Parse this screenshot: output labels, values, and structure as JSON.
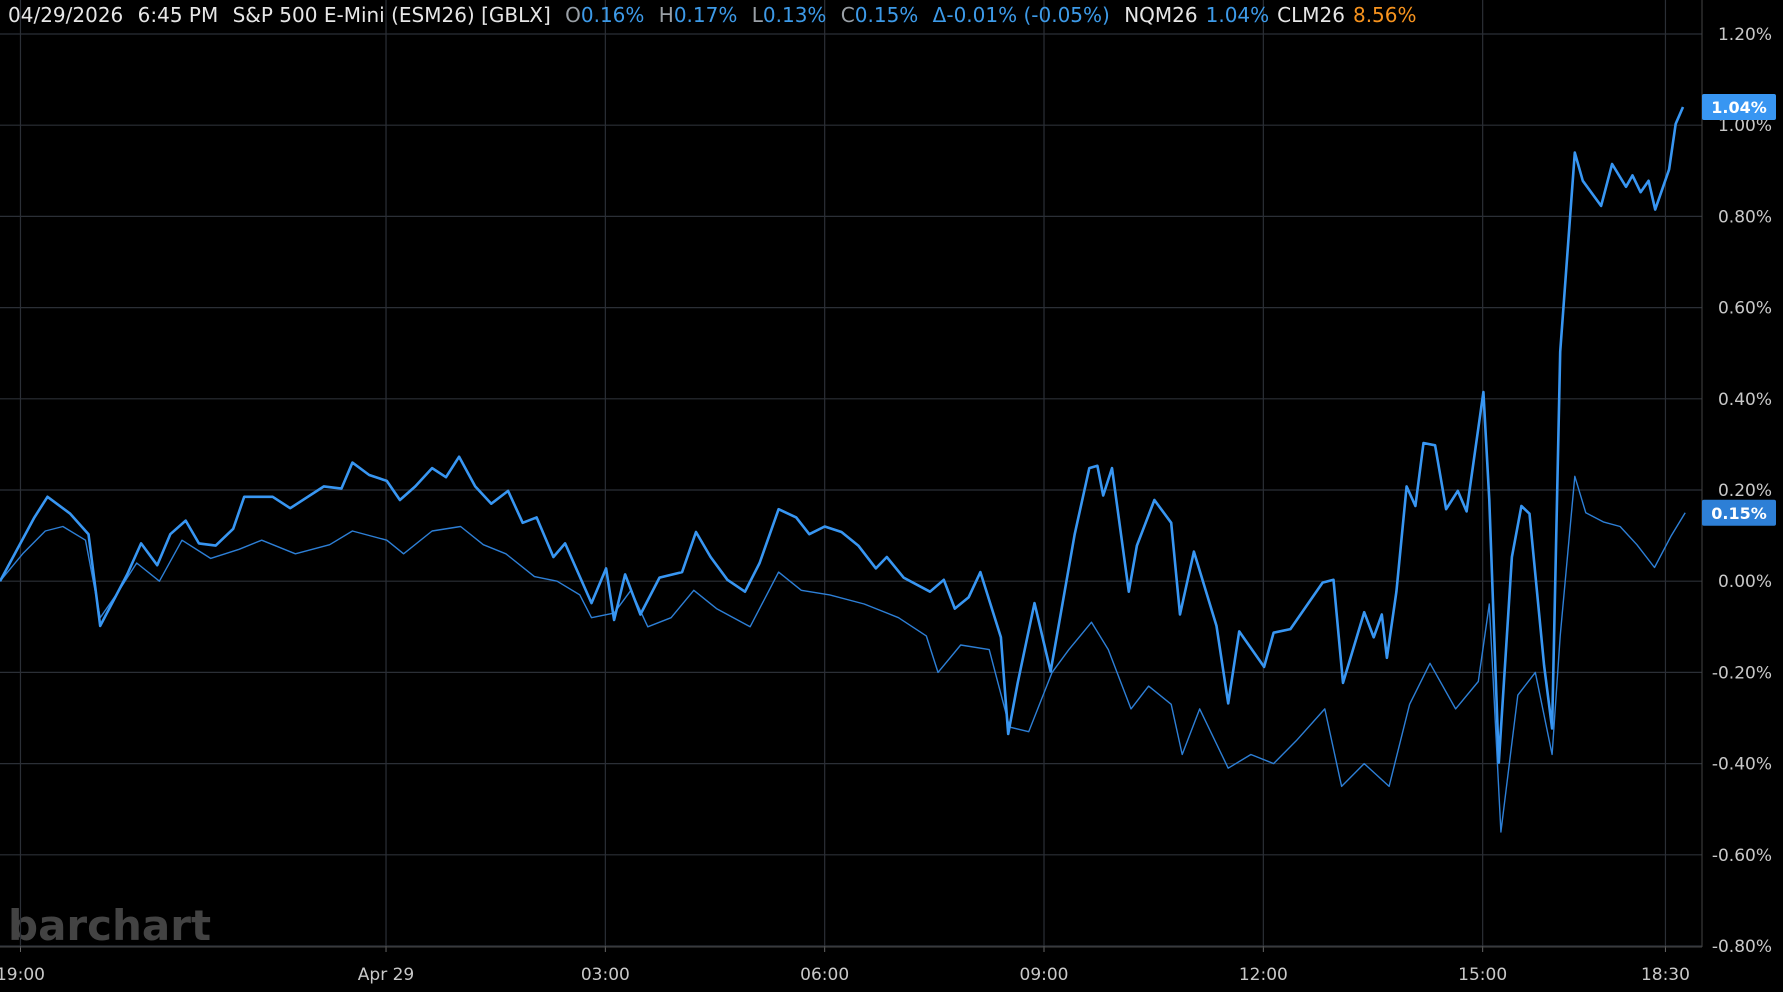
{
  "header": {
    "date": "04/29/2026",
    "time": "6:45 PM",
    "symbol": "S&P 500 E-Mini (ESM26) [GBLX]",
    "open_label": "O",
    "open": "0.16%",
    "high_label": "H",
    "high": "0.17%",
    "low_label": "L",
    "low": "0.13%",
    "close_label": "C",
    "close": "0.15%",
    "change": "Δ-0.01% (-0.05%)",
    "compare": [
      {
        "symbol": "NQM26",
        "value": "1.04%",
        "color": "#3d9ae8"
      },
      {
        "symbol": "CLM26",
        "value": "8.56%",
        "color": "#f7931e"
      }
    ]
  },
  "watermark": "barchart",
  "chart_data": {
    "type": "line",
    "xlim": [
      0.72,
      24.0
    ],
    "xticks": [
      {
        "value": 1,
        "label": "19:00"
      },
      {
        "value": 6,
        "label": "Apr 29"
      },
      {
        "value": 9,
        "label": "03:00"
      },
      {
        "value": 12,
        "label": "06:00"
      },
      {
        "value": 15,
        "label": "09:00"
      },
      {
        "value": 18,
        "label": "12:00"
      },
      {
        "value": 21,
        "label": "15:00"
      },
      {
        "value": 23.5,
        "label": "18:30"
      }
    ],
    "ylim": [
      -0.8,
      1.2
    ],
    "yticks": [
      {
        "value": 1.2,
        "label": "1.20%"
      },
      {
        "value": 1.0,
        "label": "1.00%"
      },
      {
        "value": 0.8,
        "label": "0.80%"
      },
      {
        "value": 0.6,
        "label": "0.60%"
      },
      {
        "value": 0.4,
        "label": "0.40%"
      },
      {
        "value": 0.2,
        "label": "0.20%"
      },
      {
        "value": 0,
        "label": "0.00%"
      },
      {
        "value": -0.2,
        "label": "-0.20%"
      },
      {
        "value": -0.4,
        "label": "-0.40%"
      },
      {
        "value": -0.6,
        "label": "-0.60%"
      },
      {
        "value": -0.8,
        "label": "-0.80%"
      }
    ],
    "grid": true,
    "series": [
      {
        "name": "NQM26",
        "color": "#3896f2",
        "width": 2.6,
        "last_label": "1.04%",
        "x": [
          0.72,
          1.19,
          1.37,
          1.68,
          1.93,
          2.09,
          2.46,
          2.65,
          2.87,
          3.05,
          3.26,
          3.44,
          3.67,
          3.91,
          4.06,
          4.45,
          4.69,
          5.15,
          5.39,
          5.54,
          5.77,
          6.01,
          6.19,
          6.4,
          6.63,
          6.82,
          7.0,
          7.22,
          7.44,
          7.67,
          7.87,
          8.06,
          8.29,
          8.45,
          8.81,
          9.01,
          9.12,
          9.27,
          9.48,
          9.74,
          10.05,
          10.24,
          10.44,
          10.67,
          10.91,
          11.11,
          11.37,
          11.61,
          11.79,
          12.0,
          12.23,
          12.46,
          12.7,
          12.85,
          13.08,
          13.44,
          13.63,
          13.78,
          13.97,
          14.13,
          14.41,
          14.51,
          14.64,
          14.87,
          15.09,
          15.42,
          15.62,
          15.73,
          15.81,
          15.93,
          16.16,
          16.27,
          16.51,
          16.74,
          16.86,
          17.05,
          17.36,
          17.52,
          17.67,
          18.01,
          18.14,
          18.37,
          18.81,
          18.96,
          19.09,
          19.38,
          19.51,
          19.62,
          19.69,
          19.82,
          19.96,
          20.08,
          20.19,
          20.35,
          20.5,
          20.66,
          20.78,
          21.01,
          21.09,
          21.22,
          21.4,
          21.53,
          21.64,
          21.84,
          21.95,
          22.06,
          22.26,
          22.37,
          22.62,
          22.77,
          22.96,
          23.05,
          23.16,
          23.27,
          23.36,
          23.55,
          23.64,
          23.74
        ],
        "values": [
          0.0,
          0.14,
          0.185,
          0.148,
          0.103,
          -0.098,
          0.015,
          0.083,
          0.035,
          0.103,
          0.133,
          0.083,
          0.078,
          0.115,
          0.185,
          0.185,
          0.16,
          0.208,
          0.203,
          0.26,
          0.233,
          0.22,
          0.178,
          0.208,
          0.248,
          0.228,
          0.273,
          0.208,
          0.17,
          0.198,
          0.128,
          0.14,
          0.053,
          0.083,
          -0.048,
          0.028,
          -0.085,
          0.015,
          -0.073,
          0.008,
          0.02,
          0.108,
          0.053,
          0.003,
          -0.023,
          0.04,
          0.158,
          0.14,
          0.103,
          0.12,
          0.108,
          0.078,
          0.028,
          0.053,
          0.008,
          -0.023,
          0.003,
          -0.06,
          -0.035,
          0.02,
          -0.123,
          -0.335,
          -0.223,
          -0.048,
          -0.198,
          0.103,
          0.248,
          0.253,
          0.188,
          0.248,
          -0.023,
          0.078,
          0.178,
          0.128,
          -0.073,
          0.065,
          -0.098,
          -0.268,
          -0.11,
          -0.188,
          -0.113,
          -0.105,
          -0.003,
          0.003,
          -0.223,
          -0.068,
          -0.123,
          -0.073,
          -0.168,
          -0.023,
          0.208,
          0.165,
          0.303,
          0.298,
          0.158,
          0.198,
          0.153,
          0.415,
          0.178,
          -0.398,
          0.053,
          0.165,
          0.148,
          -0.185,
          -0.323,
          0.503,
          0.94,
          0.878,
          0.823,
          0.915,
          0.865,
          0.89,
          0.853,
          0.878,
          0.815,
          0.903,
          1.003,
          1.04
        ]
      },
      {
        "name": "S&P 500 E-Mini (ESM26)",
        "color": "#2d7fd6",
        "width": 1.4,
        "last_label": "0.15%",
        "x": [
          0.72,
          1.03,
          1.34,
          1.58,
          1.89,
          2.09,
          2.35,
          2.59,
          2.9,
          3.21,
          3.6,
          3.99,
          4.3,
          4.76,
          5.23,
          5.54,
          6.01,
          6.24,
          6.63,
          7.02,
          7.33,
          7.64,
          8.03,
          8.34,
          8.65,
          8.81,
          9.12,
          9.35,
          9.58,
          9.9,
          10.21,
          10.52,
          10.98,
          11.37,
          11.68,
          12.07,
          12.54,
          13.01,
          13.39,
          13.55,
          13.86,
          14.25,
          14.53,
          14.79,
          15.11,
          15.34,
          15.65,
          15.88,
          16.19,
          16.43,
          16.74,
          16.89,
          17.13,
          17.52,
          17.83,
          18.14,
          18.45,
          18.84,
          19.07,
          19.38,
          19.72,
          20.0,
          20.28,
          20.63,
          20.94,
          21.09,
          21.25,
          21.48,
          21.72,
          21.95,
          22.06,
          22.26,
          22.41,
          22.65,
          22.88,
          23.11,
          23.35,
          23.58,
          23.77
        ],
        "values": [
          0.0,
          0.06,
          0.11,
          0.12,
          0.09,
          -0.08,
          -0.02,
          0.04,
          0.0,
          0.09,
          0.05,
          0.07,
          0.09,
          0.06,
          0.08,
          0.11,
          0.09,
          0.06,
          0.11,
          0.12,
          0.08,
          0.06,
          0.01,
          0.0,
          -0.03,
          -0.08,
          -0.07,
          -0.02,
          -0.1,
          -0.08,
          -0.02,
          -0.06,
          -0.1,
          0.02,
          -0.02,
          -0.03,
          -0.05,
          -0.08,
          -0.12,
          -0.2,
          -0.14,
          -0.15,
          -0.32,
          -0.33,
          -0.2,
          -0.15,
          -0.09,
          -0.15,
          -0.28,
          -0.23,
          -0.27,
          -0.38,
          -0.28,
          -0.41,
          -0.38,
          -0.4,
          -0.35,
          -0.28,
          -0.45,
          -0.4,
          -0.45,
          -0.27,
          -0.18,
          -0.28,
          -0.22,
          -0.05,
          -0.55,
          -0.25,
          -0.2,
          -0.38,
          -0.12,
          0.23,
          0.15,
          0.13,
          0.12,
          0.08,
          0.03,
          0.1,
          0.15
        ]
      }
    ]
  }
}
